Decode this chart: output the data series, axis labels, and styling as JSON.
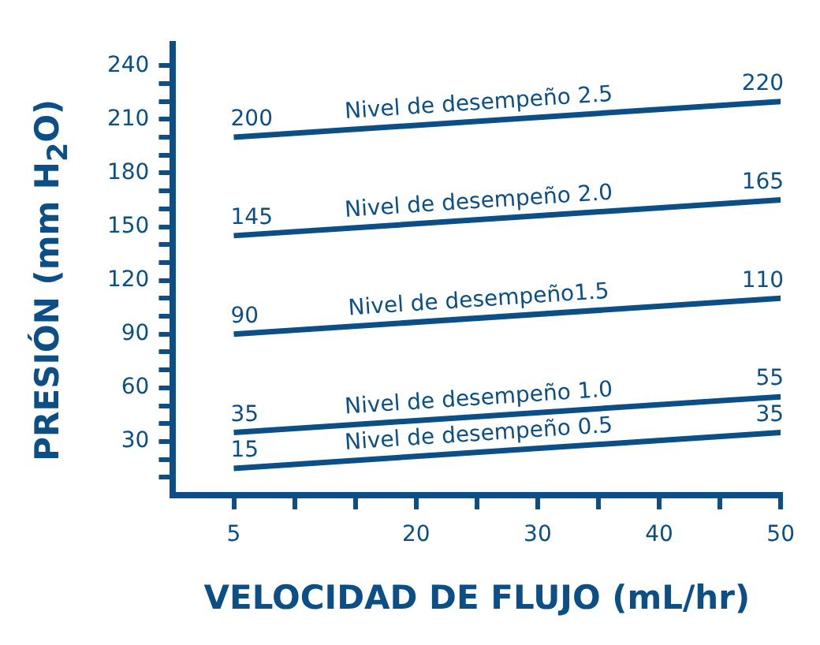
{
  "chart_data": {
    "type": "line",
    "xlabel": "VELOCIDAD DE FLUJO (mL/hr)",
    "ylabel": "PRESIÓN (mm H$_{2}$O)",
    "x": [
      5,
      50
    ],
    "series": [
      {
        "name": "Nivel de desempeño 2.5",
        "color": "#0b4f86",
        "values": [
          200,
          220
        ]
      },
      {
        "name": "Nivel de desempeño 2.0",
        "color": "#0b4f86",
        "values": [
          145,
          165
        ]
      },
      {
        "name": "Nivel de desempeño1.5",
        "color": "#0b4f86",
        "values": [
          90,
          110
        ]
      },
      {
        "name": "Nivel de desempeño 1.0",
        "color": "#0b4f86",
        "values": [
          35,
          55
        ]
      },
      {
        "name": "Nivel de desempeño 0.5",
        "color": "#0b4f86",
        "values": [
          15,
          35
        ]
      }
    ],
    "xlim": [
      0,
      50
    ],
    "xticks": [
      5,
      {
        "value": 10,
        "label": null
      },
      {
        "value": 15,
        "label": null
      },
      20,
      {
        "value": 25,
        "label": null
      },
      30,
      {
        "value": 35,
        "label": null
      },
      40,
      {
        "value": 45,
        "label": null
      },
      50
    ],
    "ylim": [
      0,
      252
    ],
    "yticks": [
      {
        "value": 10,
        "label": null
      },
      {
        "value": 20,
        "label": null
      },
      30,
      {
        "value": 40,
        "label": null
      },
      {
        "value": 50,
        "label": null
      },
      60,
      {
        "value": 70,
        "label": null
      },
      {
        "value": 80,
        "label": null
      },
      90,
      {
        "value": 100,
        "label": null
      },
      {
        "value": 110,
        "label": null
      },
      120,
      {
        "value": 130,
        "label": null
      },
      {
        "value": 140,
        "label": null
      },
      150,
      {
        "value": 160,
        "label": null
      },
      {
        "value": 170,
        "label": null
      },
      180,
      {
        "value": 190,
        "label": null
      },
      {
        "value": 200,
        "label": null
      },
      210,
      {
        "value": 220,
        "label": null
      },
      {
        "value": 230,
        "label": null
      },
      240
    ],
    "grid": false,
    "legend": false,
    "marker": "none",
    "line_style": "solid",
    "data_labels": true
  }
}
